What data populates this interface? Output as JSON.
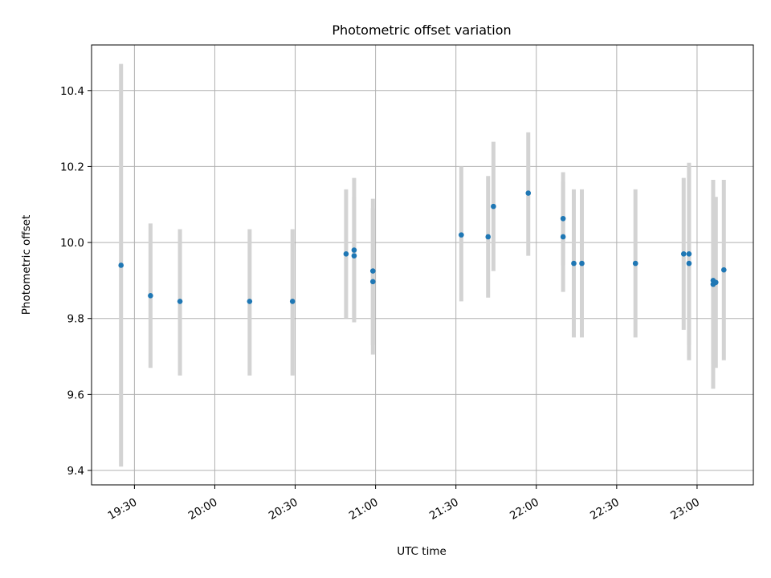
{
  "chart_data": {
    "type": "scatter",
    "title": "Photometric offset variation",
    "xlabel": "UTC time",
    "ylabel": "Photometric offset",
    "x_ticks": [
      "19:30",
      "20:00",
      "20:30",
      "21:00",
      "21:30",
      "22:00",
      "22:30",
      "23:00"
    ],
    "x_tick_minutes": [
      1170,
      1200,
      1230,
      1260,
      1290,
      1320,
      1350,
      1380
    ],
    "xlim_minutes": [
      1154,
      1401
    ],
    "y_ticks": [
      "9.4",
      "9.6",
      "9.8",
      "10.0",
      "10.2",
      "10.4"
    ],
    "y_tick_values": [
      9.4,
      9.6,
      9.8,
      10.0,
      10.2,
      10.4
    ],
    "ylim": [
      9.362,
      10.52
    ],
    "grid": true,
    "series": [
      {
        "marker_color": "#1f77b4",
        "errorbar_color": "#d3d3d3",
        "points": [
          {
            "x": "19:25",
            "y": 9.94,
            "ylo": 9.41,
            "yhi": 10.47
          },
          {
            "x": "19:36",
            "y": 9.86,
            "ylo": 9.67,
            "yhi": 10.05
          },
          {
            "x": "19:47",
            "y": 9.845,
            "ylo": 9.65,
            "yhi": 10.035
          },
          {
            "x": "20:13",
            "y": 9.845,
            "ylo": 9.65,
            "yhi": 10.035
          },
          {
            "x": "20:29",
            "y": 9.845,
            "ylo": 9.65,
            "yhi": 10.035
          },
          {
            "x": "20:49",
            "y": 9.97,
            "ylo": 9.8,
            "yhi": 10.14
          },
          {
            "x": "20:52",
            "y": 9.98,
            "ylo": 9.79,
            "yhi": 10.17
          },
          {
            "x": "20:52",
            "y": 9.965,
            "ylo": 9.8,
            "yhi": 10.12
          },
          {
            "x": "20:59",
            "y": 9.925,
            "ylo": 9.73,
            "yhi": 10.115
          },
          {
            "x": "20:59",
            "y": 9.897,
            "ylo": 9.705,
            "yhi": 10.09
          },
          {
            "x": "21:32",
            "y": 10.02,
            "ylo": 9.845,
            "yhi": 10.2
          },
          {
            "x": "21:42",
            "y": 10.015,
            "ylo": 9.855,
            "yhi": 10.175
          },
          {
            "x": "21:44",
            "y": 10.095,
            "ylo": 9.925,
            "yhi": 10.265
          },
          {
            "x": "21:57",
            "y": 10.13,
            "ylo": 9.965,
            "yhi": 10.29
          },
          {
            "x": "22:10",
            "y": 10.063,
            "ylo": 9.94,
            "yhi": 10.185
          },
          {
            "x": "22:10",
            "y": 10.015,
            "ylo": 9.87,
            "yhi": 10.16
          },
          {
            "x": "22:14",
            "y": 9.945,
            "ylo": 9.75,
            "yhi": 10.14
          },
          {
            "x": "22:17",
            "y": 9.945,
            "ylo": 9.75,
            "yhi": 10.14
          },
          {
            "x": "22:37",
            "y": 9.945,
            "ylo": 9.75,
            "yhi": 10.14
          },
          {
            "x": "22:55",
            "y": 9.97,
            "ylo": 9.77,
            "yhi": 10.17
          },
          {
            "x": "22:57",
            "y": 9.97,
            "ylo": 9.73,
            "yhi": 10.21
          },
          {
            "x": "22:57",
            "y": 9.945,
            "ylo": 9.69,
            "yhi": 10.2
          },
          {
            "x": "23:06",
            "y": 9.9,
            "ylo": 9.68,
            "yhi": 10.12
          },
          {
            "x": "23:06",
            "y": 9.89,
            "ylo": 9.615,
            "yhi": 10.165
          },
          {
            "x": "23:07",
            "y": 9.895,
            "ylo": 9.67,
            "yhi": 10.12
          },
          {
            "x": "23:10",
            "y": 9.928,
            "ylo": 9.69,
            "yhi": 10.165
          }
        ]
      }
    ]
  }
}
